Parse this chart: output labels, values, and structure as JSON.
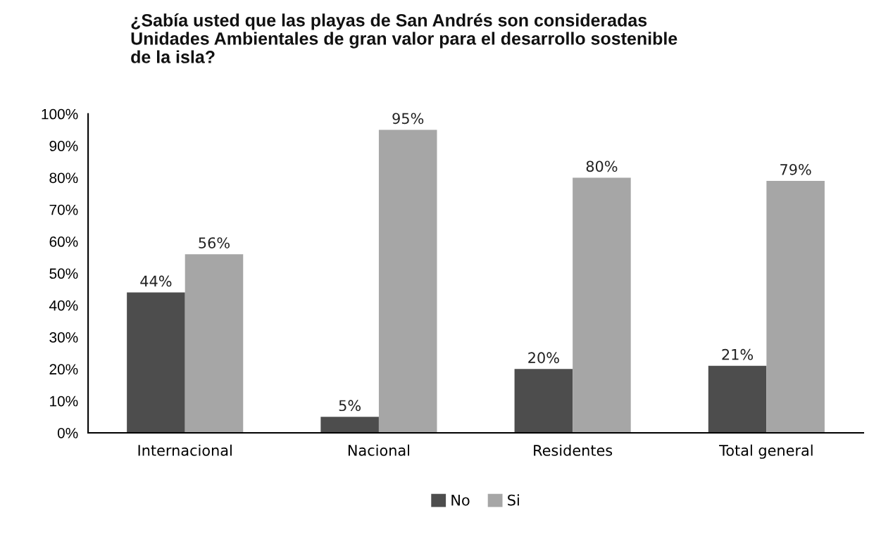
{
  "chart_data": {
    "type": "bar",
    "title": "¿Sabía usted que las playas de San Andrés son consideradas Unidades Ambientales de gran valor para el desarrollo sostenible de la isla?",
    "categories": [
      "Internacional",
      "Nacional",
      "Residentes",
      "Total general"
    ],
    "series": [
      {
        "name": "No",
        "color": "#4d4d4d",
        "values": [
          44,
          5,
          20,
          21
        ],
        "value_labels": [
          "44%",
          "5%",
          "20%",
          "21%"
        ]
      },
      {
        "name": "Si",
        "color": "#a6a6a6",
        "values": [
          56,
          95,
          80,
          79
        ],
        "value_labels": [
          "56%",
          "95%",
          "80%",
          "79%"
        ]
      }
    ],
    "ylim": [
      0,
      100
    ],
    "yticks": [
      {
        "value": 0,
        "label": "0%"
      },
      {
        "value": 10,
        "label": "10%"
      },
      {
        "value": 20,
        "label": "20%"
      },
      {
        "value": 30,
        "label": "30%"
      },
      {
        "value": 40,
        "label": "40%"
      },
      {
        "value": 50,
        "label": "50%"
      },
      {
        "value": 60,
        "label": "60%"
      },
      {
        "value": 70,
        "label": "70%"
      },
      {
        "value": 80,
        "label": "80%"
      },
      {
        "value": 90,
        "label": "90%"
      },
      {
        "value": 100,
        "label": "100%"
      }
    ],
    "grid": false,
    "legend": "bottom"
  }
}
